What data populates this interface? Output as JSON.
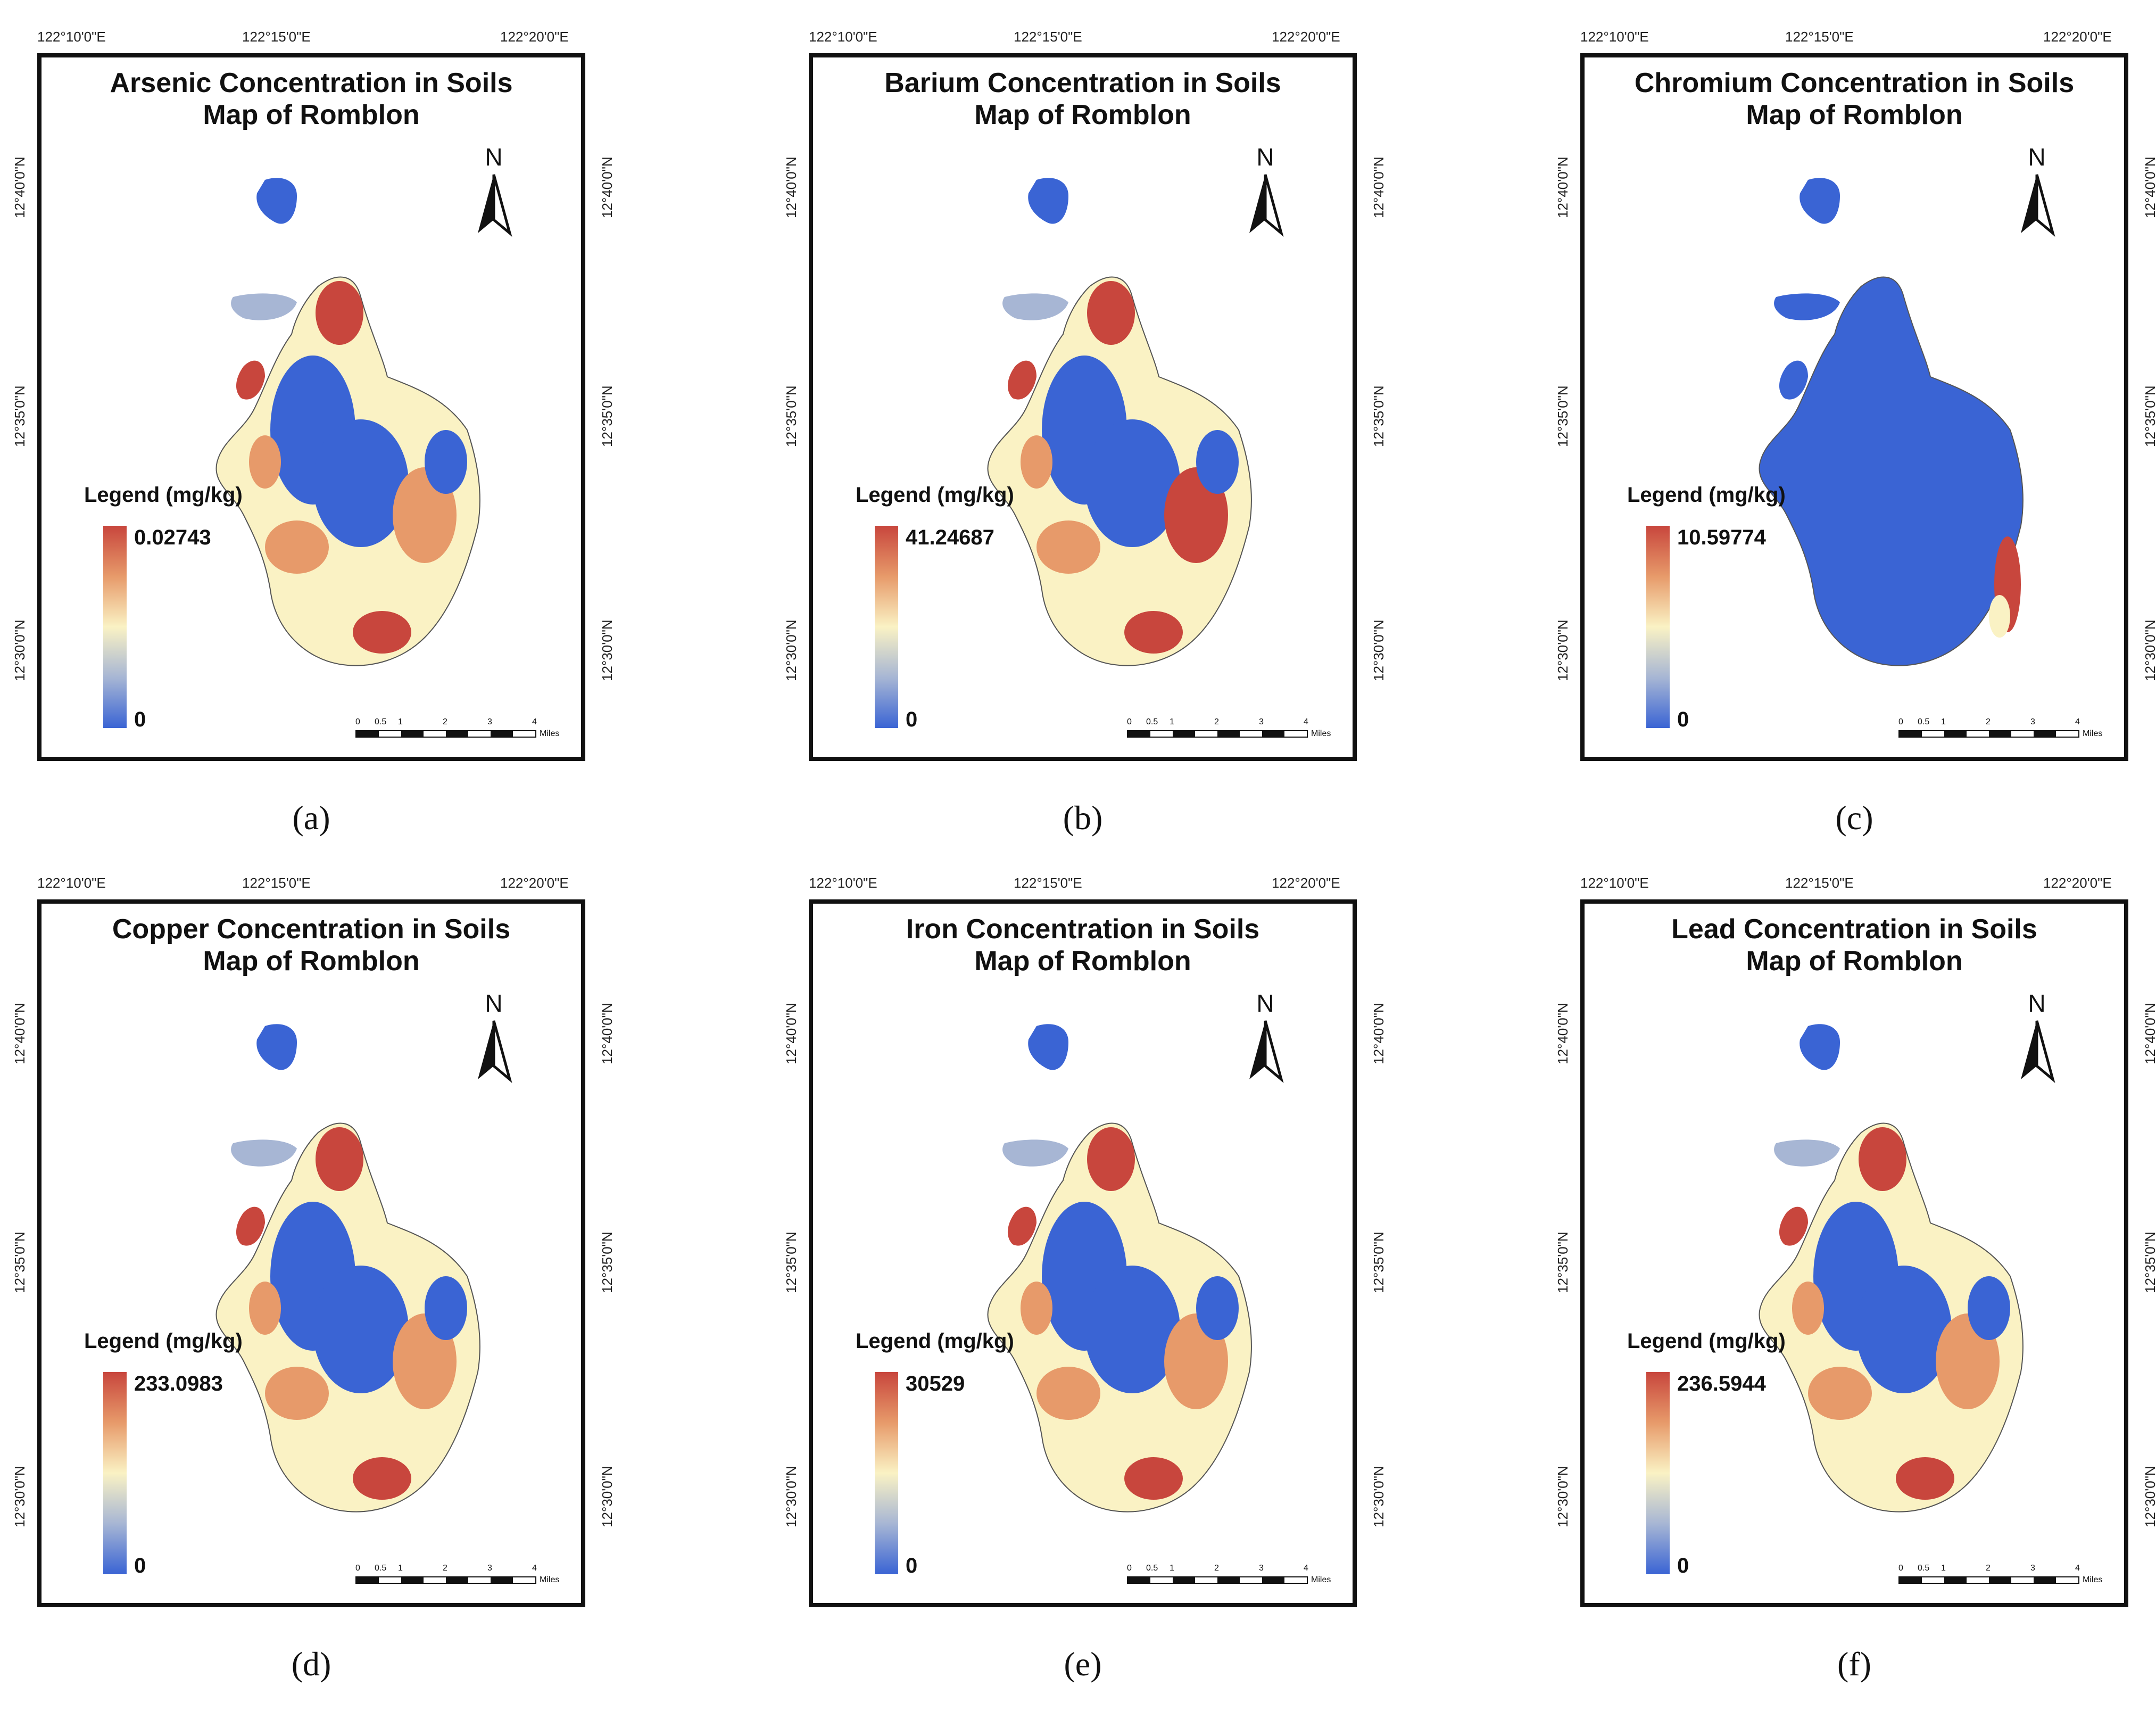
{
  "figure": {
    "coords": {
      "top_left": "122°10'0\"E",
      "top_mid": "122°15'0\"E",
      "top_right": "122°20'0\"E",
      "left_upper": "12°40'0\"N",
      "left_mid": "12°35'0\"N",
      "left_lower": "12°30'0\"N",
      "right_upper": "12°40'0\"N",
      "right_mid": "12°35'0\"N",
      "right_lower": "12°30'0\"N"
    },
    "north_label": "N",
    "legend_title": "Legend (mg/kg)",
    "scale": {
      "ticks": [
        "0",
        "0.5",
        "1",
        "2",
        "3",
        "4"
      ],
      "units": "Miles"
    },
    "colors": {
      "high": "#c8463d",
      "mid_high": "#e79a6a",
      "mid": "#faf2c4",
      "mid_low": "#a7b6d4",
      "low": "#3a64d4"
    },
    "panels": [
      {
        "title_line1": "Arsenic Concentration in Soils",
        "title_line2": "Map of Romblon",
        "max": "0.02743",
        "min": "0",
        "caption": "(a)",
        "dominant": "mixed"
      },
      {
        "title_line1": "Barium Concentration in Soils",
        "title_line2": "Map of Romblon",
        "max": "41.24687",
        "min": "0",
        "caption": "(b)",
        "dominant": "mixed"
      },
      {
        "title_line1": "Chromium Concentration in Soils",
        "title_line2": "Map of Romblon",
        "max": "10.59774",
        "min": "0",
        "caption": "(c)",
        "dominant": "low"
      },
      {
        "title_line1": "Copper Concentration in Soils",
        "title_line2": "Map of Romblon",
        "max": "233.0983",
        "min": "0",
        "caption": "(d)",
        "dominant": "mixed"
      },
      {
        "title_line1": "Iron Concentration in Soils",
        "title_line2": "Map of Romblon",
        "max": "30529",
        "min": "0",
        "caption": "(e)",
        "dominant": "mixed"
      },
      {
        "title_line1": "Lead Concentration in Soils",
        "title_line2": "Map of Romblon",
        "max": "236.5944",
        "min": "0",
        "caption": "(f)",
        "dominant": "mixed"
      }
    ]
  }
}
